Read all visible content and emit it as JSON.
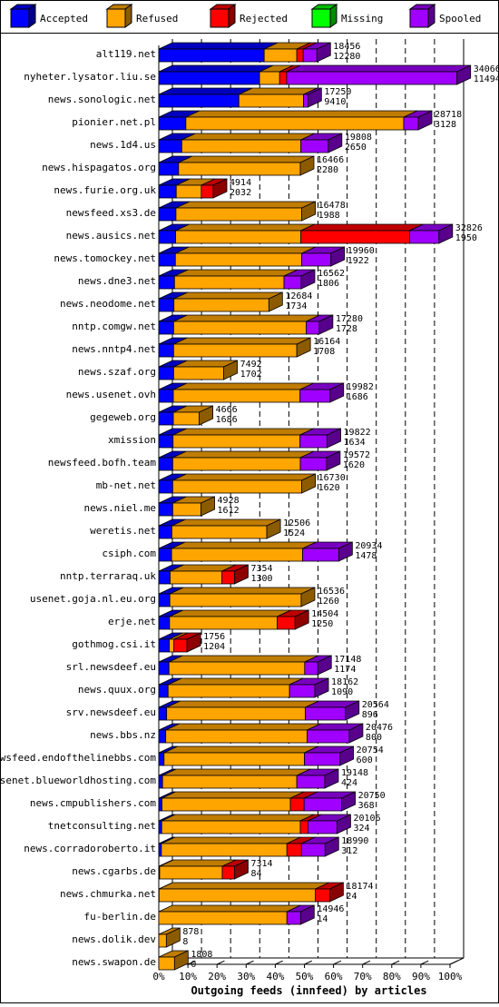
{
  "chart_data": {
    "type": "bar",
    "orientation": "horizontal",
    "stacked": true,
    "x_unit": "percent",
    "xlim": [
      0,
      100
    ],
    "xticks": [
      "0%",
      "10%",
      "20%",
      "30%",
      "40%",
      "50%",
      "60%",
      "70%",
      "80%",
      "90%",
      "100%"
    ],
    "xlabel": "Outgoing feeds (innfeed) by articles",
    "grid": true,
    "legend_position": "top",
    "series": [
      {
        "name": "Accepted",
        "color": "#0000ff"
      },
      {
        "name": "Refused",
        "color": "#ffa500"
      },
      {
        "name": "Rejected",
        "color": "#ff0000"
      },
      {
        "name": "Missing",
        "color": "#00ff00"
      },
      {
        "name": "Spooled",
        "color": "#a000ff"
      }
    ],
    "categories": [
      "alt119.net",
      "nyheter.lysator.liu.se",
      "news.sonologic.net",
      "pionier.net.pl",
      "news.1d4.us",
      "news.hispagatos.org",
      "news.furie.org.uk",
      "newsfeed.xs3.de",
      "news.ausics.net",
      "news.tomockey.net",
      "news.dne3.net",
      "news.neodome.net",
      "nntp.comgw.net",
      "news.nntp4.net",
      "news.szaf.org",
      "news.usenet.ovh",
      "gegeweb.org",
      "xmission",
      "newsfeed.bofh.team",
      "mb-net.net",
      "news.niel.me",
      "weretis.net",
      "csiph.com",
      "nntp.terraraq.uk",
      "usenet.goja.nl.eu.org",
      "erje.net",
      "gothmog.csi.it",
      "srl.newsdeef.eu",
      "news.quux.org",
      "srv.newsdeef.eu",
      "news.bbs.nz",
      "newsfeed.endofthelinebbs.com",
      "usenet.blueworldhosting.com",
      "news.cmpublishers.com",
      "tnetconsulting.net",
      "news.corradoroberto.it",
      "news.cgarbs.de",
      "news.chmurka.net",
      "fu-berlin.de",
      "news.dolik.dev",
      "news.swapon.de"
    ],
    "label_top": [
      18456,
      34066,
      17250,
      28718,
      19808,
      16466,
      4914,
      16478,
      32826,
      19960,
      16562,
      12684,
      17280,
      16164,
      7492,
      19982,
      4666,
      19822,
      19572,
      16730,
      4928,
      12506,
      20934,
      7354,
      16536,
      14504,
      1756,
      17148,
      18162,
      20564,
      20476,
      20754,
      19148,
      20750,
      20106,
      18990,
      7314,
      18174,
      14946,
      878,
      1808
    ],
    "label_bottom": [
      12280,
      11494,
      9410,
      3128,
      2650,
      2280,
      2032,
      1988,
      1950,
      1922,
      1806,
      1734,
      1728,
      1708,
      1702,
      1686,
      1686,
      1634,
      1620,
      1620,
      1612,
      1524,
      1478,
      1300,
      1260,
      1250,
      1204,
      1174,
      1090,
      896,
      800,
      600,
      424,
      368,
      324,
      312,
      84,
      24,
      14,
      8,
      0
    ],
    "values_percent": {
      "Accepted": [
        36.2,
        34.6,
        27.5,
        9.3,
        7.9,
        6.8,
        6.0,
        5.9,
        5.8,
        5.7,
        5.4,
        5.2,
        5.1,
        5.1,
        5.1,
        5.0,
        5.0,
        4.9,
        4.8,
        4.8,
        4.8,
        4.5,
        4.4,
        3.9,
        3.8,
        3.7,
        3.6,
        3.5,
        3.2,
        2.7,
        2.4,
        1.8,
        1.3,
        1.1,
        1.0,
        0.9,
        0.3,
        0.1,
        0,
        0,
        0
      ],
      "Refused": [
        11.2,
        6.9,
        22.2,
        74.8,
        40.9,
        41.8,
        8.6,
        43.2,
        43.0,
        43.4,
        37.6,
        32.6,
        45.5,
        42.3,
        17.2,
        43.5,
        8.9,
        43.6,
        43.8,
        44.3,
        9.7,
        32.6,
        45.0,
        17.8,
        45.1,
        37.0,
        1.6,
        46.6,
        41.7,
        47.6,
        48.5,
        48.2,
        46.1,
        44.1,
        47.6,
        43.1,
        21.5,
        53.7,
        44.0,
        2.6,
        5.4
      ],
      "Rejected": [
        2.2,
        2.4,
        0,
        0,
        0,
        0,
        4.1,
        0,
        37.3,
        0,
        0,
        0,
        0,
        0,
        0,
        0,
        0,
        0,
        0,
        0,
        0,
        0,
        0,
        4.3,
        0,
        6.1,
        4.5,
        0,
        0,
        0,
        0,
        0,
        0,
        4.7,
        2.6,
        5.0,
        4.2,
        4.9,
        0,
        0,
        0
      ],
      "Missing": [
        0,
        0,
        0,
        0,
        0,
        0,
        0,
        0,
        0,
        0,
        0,
        0,
        0,
        0,
        0,
        0,
        0,
        0,
        0,
        0,
        0,
        0,
        0,
        0,
        0,
        0,
        0,
        0,
        0,
        0,
        0,
        0,
        0,
        0,
        0,
        0,
        0,
        0,
        0,
        0,
        0
      ],
      "Spooled": [
        4.7,
        58.5,
        1.5,
        5.0,
        9.4,
        0,
        0,
        0,
        10.1,
        10.0,
        5.9,
        0,
        4.5,
        0,
        0,
        10.3,
        0,
        9.3,
        9.0,
        0,
        0,
        0,
        12.4,
        0,
        0,
        0,
        0,
        4.5,
        8.7,
        13.8,
        14.5,
        12.2,
        9.6,
        12.9,
        10.0,
        8.1,
        0,
        0,
        4.7,
        0,
        0
      ]
    }
  }
}
